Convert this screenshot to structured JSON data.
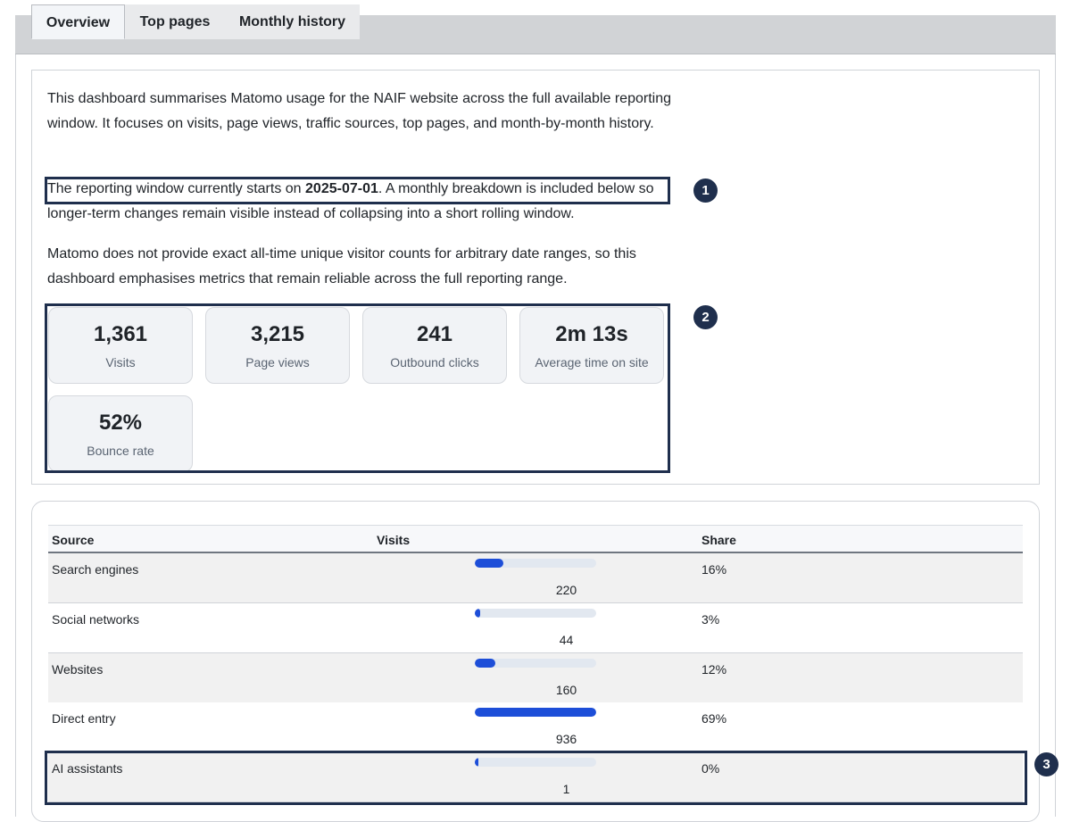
{
  "tabs": [
    {
      "label": "Overview",
      "active": true
    },
    {
      "label": "Top pages",
      "active": false
    },
    {
      "label": "Monthly history",
      "active": false
    }
  ],
  "intro": {
    "p1": "This dashboard summarises Matomo usage for the NAIF website across the full available reporting window. It focuses on visits, page views, traffic sources, top pages, and month-by-month history.",
    "p2_before": "The reporting window currently starts on ",
    "p2_date": "2025-07-01",
    "p2_after": ". A monthly breakdown is included below so longer-term changes remain visible instead of collapsing into a short rolling window.",
    "p3": "Matomo does not provide exact all-time unique visitor counts for arbitrary date ranges, so this dashboard emphasises metrics that remain reliable across the full reporting range."
  },
  "metrics": [
    {
      "value": "1,361",
      "label": "Visits"
    },
    {
      "value": "3,215",
      "label": "Page views"
    },
    {
      "value": "241",
      "label": "Outbound clicks"
    },
    {
      "value": "2m 13s",
      "label": "Average time on site"
    },
    {
      "value": "52%",
      "label": "Bounce rate"
    }
  ],
  "annotations": [
    "1",
    "2",
    "3"
  ],
  "sources_table": {
    "headers": [
      "Source",
      "Visits",
      "Share"
    ],
    "rows": [
      {
        "source": "Search engines",
        "visits": "220",
        "share": "16%",
        "bar_fraction": 0.235
      },
      {
        "source": "Social networks",
        "visits": "44",
        "share": "3%",
        "bar_fraction": 0.047
      },
      {
        "source": "Websites",
        "visits": "160",
        "share": "12%",
        "bar_fraction": 0.171
      },
      {
        "source": "Direct entry",
        "visits": "936",
        "share": "69%",
        "bar_fraction": 1.0
      },
      {
        "source": "AI assistants",
        "visits": "1",
        "share": "0%",
        "bar_fraction": 0.03
      }
    ]
  },
  "colors": {
    "accent": "#1d4ed8",
    "highlight": "#1f2f4d"
  }
}
